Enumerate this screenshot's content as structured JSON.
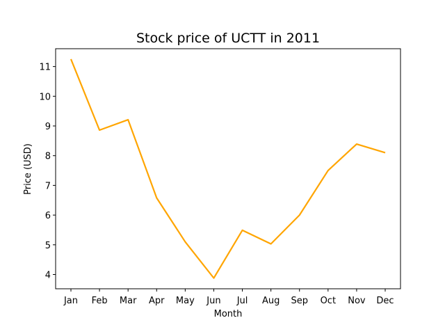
{
  "chart_data": {
    "type": "line",
    "title": "Stock price of UCTT in 2011",
    "xlabel": "Month",
    "ylabel": "Price (USD)",
    "categories": [
      "Jan",
      "Feb",
      "Mar",
      "Apr",
      "May",
      "Jun",
      "Jul",
      "Aug",
      "Sep",
      "Oct",
      "Nov",
      "Dec"
    ],
    "series": [
      {
        "values": [
          11.25,
          8.86,
          9.21,
          6.58,
          5.1,
          3.88,
          5.49,
          5.03,
          6.0,
          7.5,
          8.39,
          8.1
        ],
        "color": "#ffa500"
      }
    ],
    "yticks": [
      4,
      5,
      6,
      7,
      8,
      9,
      10,
      11
    ],
    "ylim": [
      3.52,
      11.6
    ],
    "grid": false,
    "legend": "none"
  }
}
